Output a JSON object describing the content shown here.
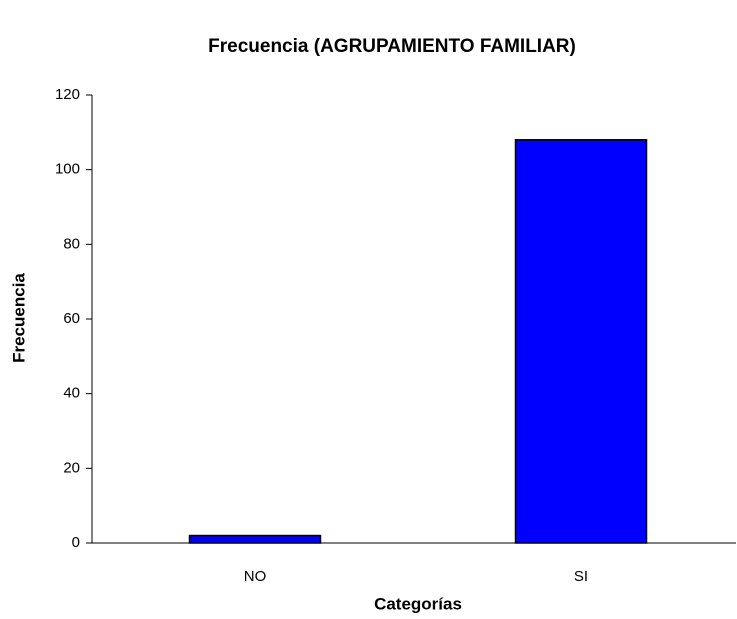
{
  "chart_data": {
    "type": "bar",
    "title": "Frecuencia (AGRUPAMIENTO FAMILIAR)",
    "x_label": "Categorías",
    "y_label": "Frecuencia",
    "categories": [
      "NO",
      "SI"
    ],
    "values": [
      2,
      108
    ],
    "color": "#0000ff",
    "ylim": [
      0,
      120
    ],
    "yticks": [
      0,
      20,
      40,
      60,
      80,
      100,
      120
    ],
    "grid": false
  }
}
